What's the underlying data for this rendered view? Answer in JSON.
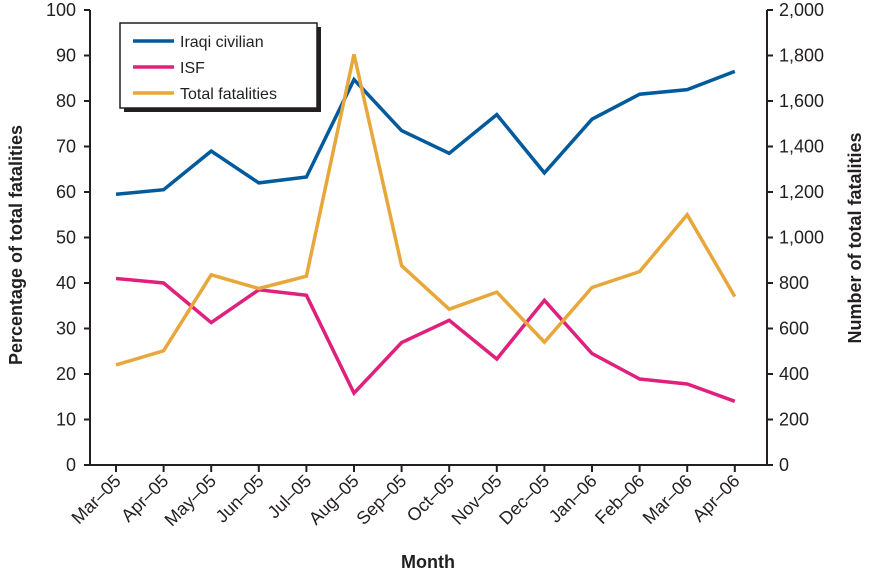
{
  "chart_data": {
    "type": "line",
    "title": "",
    "xlabel": "Month",
    "ylabel_left": "Percentage of total fatalities",
    "ylabel_right": "Number of total fatalities",
    "categories": [
      "Mar–05",
      "Apr–05",
      "May–05",
      "Jun–05",
      "Jul–05",
      "Aug–05",
      "Sep–05",
      "Oct–05",
      "Nov–05",
      "Dec–05",
      "Jan–06",
      "Feb–06",
      "Mar–06",
      "Apr–06"
    ],
    "y_left": {
      "range": [
        0,
        100
      ],
      "ticks": [
        0,
        10,
        20,
        30,
        40,
        50,
        60,
        70,
        80,
        90,
        100
      ],
      "tick_labels": [
        "0",
        "10",
        "20",
        "30",
        "40",
        "50",
        "60",
        "70",
        "80",
        "90",
        "100"
      ]
    },
    "y_right": {
      "range": [
        0,
        2000
      ],
      "ticks": [
        0,
        200,
        400,
        600,
        800,
        1000,
        1200,
        1400,
        1600,
        1800,
        2000
      ],
      "tick_labels": [
        "0",
        "200",
        "400",
        "600",
        "800",
        "1,000",
        "1,200",
        "1,400",
        "1,600",
        "1,800",
        "2,000"
      ]
    },
    "grid": false,
    "legend_position": "top-left",
    "series": [
      {
        "name": "Iraqi civilian",
        "axis": "left",
        "color": "#005a9c",
        "values": [
          59.5,
          60.5,
          69,
          62,
          63.3,
          84.7,
          73.5,
          68.5,
          77,
          64.2,
          76,
          81.5,
          82.5,
          86.5
        ]
      },
      {
        "name": "ISF",
        "axis": "left",
        "color": "#e0207d",
        "values": [
          41,
          40,
          31.3,
          38.5,
          37.3,
          15.8,
          26.9,
          31.8,
          23.3,
          36.2,
          24.5,
          18.9,
          17.8,
          14
        ]
      },
      {
        "name": "Total fatalities",
        "axis": "right",
        "color": "#e8a73a",
        "values": [
          440,
          502,
          836,
          776,
          830,
          1805,
          876,
          685,
          760,
          540,
          780,
          850,
          1100,
          740
        ]
      }
    ]
  }
}
